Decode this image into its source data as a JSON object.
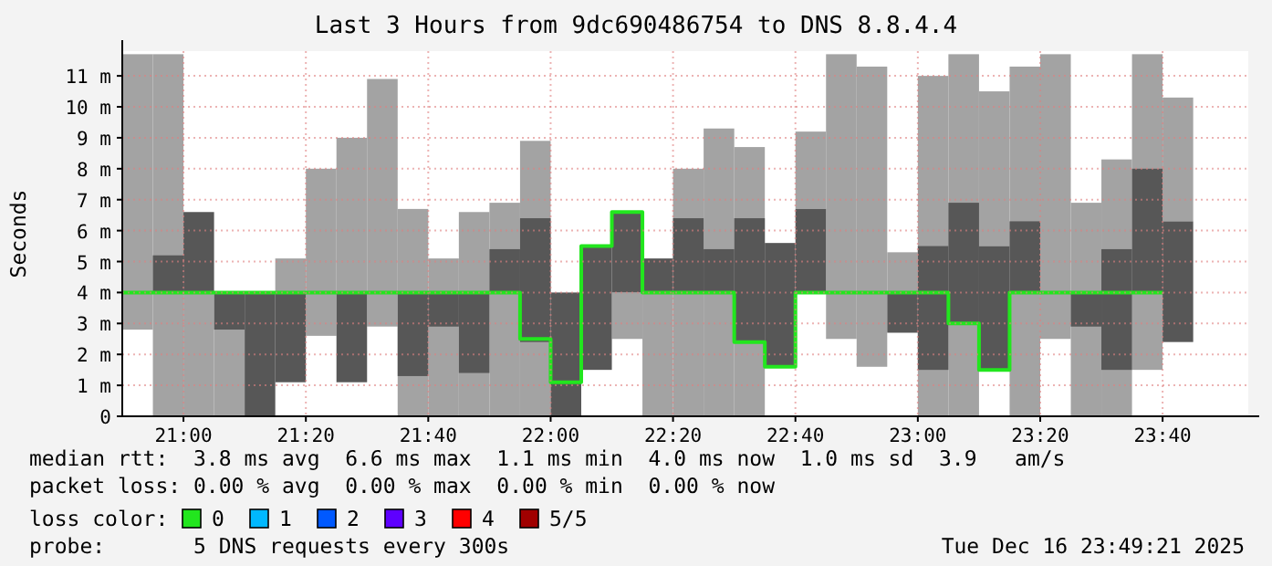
{
  "chart_data": {
    "type": "bar",
    "title": "Last 3 Hours from 9dc690486754 to DNS 8.8.4.4",
    "ylabel": "Seconds",
    "x": [
      "2025-12-16T20:50",
      "2025-12-16T20:55",
      "2025-12-16T21:00",
      "2025-12-16T21:05",
      "2025-12-16T21:10",
      "2025-12-16T21:15",
      "2025-12-16T21:20",
      "2025-12-16T21:25",
      "2025-12-16T21:30",
      "2025-12-16T21:35",
      "2025-12-16T21:40",
      "2025-12-16T21:45",
      "2025-12-16T21:50",
      "2025-12-16T21:55",
      "2025-12-16T22:00",
      "2025-12-16T22:05",
      "2025-12-16T22:10",
      "2025-12-16T22:15",
      "2025-12-16T22:20",
      "2025-12-16T22:25",
      "2025-12-16T22:30",
      "2025-12-16T22:35",
      "2025-12-16T22:40",
      "2025-12-16T22:45",
      "2025-12-16T22:50",
      "2025-12-16T22:55",
      "2025-12-16T23:00",
      "2025-12-16T23:05",
      "2025-12-16T23:10",
      "2025-12-16T23:15",
      "2025-12-16T23:20",
      "2025-12-16T23:25",
      "2025-12-16T23:30",
      "2025-12-16T23:35",
      "2025-12-16T23:40"
    ],
    "series": [
      {
        "color": "#a3a3a3",
        "base": [
          2.8,
          0,
          0,
          0,
          null,
          4.0,
          2.6,
          4.0,
          2.9,
          0,
          0,
          0,
          0,
          0,
          null,
          null,
          2.5,
          0,
          0,
          0,
          0,
          null,
          6.7,
          2.5,
          1.6,
          4.0,
          0,
          0,
          5.5,
          0,
          2.5,
          0,
          0,
          1.5,
          6.3
        ],
        "values": [
          8.9,
          11.7,
          4.0,
          2.8,
          null,
          1.1,
          5.4,
          5.0,
          8.0,
          6.7,
          5.1,
          6.6,
          6.9,
          8.9,
          null,
          null,
          1.5,
          4.0,
          8.0,
          9.3,
          8.7,
          null,
          2.5,
          9.2,
          9.7,
          1.3,
          11.0,
          11.7,
          5.0,
          11.3,
          9.2,
          6.9,
          8.3,
          10.2,
          4.0
        ]
      },
      {
        "color": "#575757",
        "base": [
          null,
          4.0,
          4.0,
          2.8,
          0,
          1.1,
          null,
          1.1,
          null,
          1.3,
          2.9,
          1.4,
          4.0,
          2.4,
          0,
          1.5,
          4.0,
          4.0,
          4.0,
          4.0,
          2.4,
          1.6,
          4.0,
          null,
          null,
          2.7,
          1.5,
          3.0,
          1.5,
          4.0,
          null,
          2.9,
          1.5,
          4.0,
          2.4
        ],
        "values": [
          null,
          1.2,
          2.6,
          1.2,
          4.0,
          2.9,
          null,
          2.9,
          null,
          2.7,
          1.1,
          2.6,
          1.4,
          4.0,
          4.0,
          4.0,
          2.6,
          1.1,
          2.4,
          1.4,
          4.0,
          4.0,
          2.7,
          null,
          null,
          1.3,
          4.0,
          3.9,
          4.0,
          2.3,
          null,
          1.1,
          3.9,
          4.0,
          3.9
        ]
      },
      {
        "type": "step",
        "name": "0",
        "color": "#22e61e",
        "values": [
          4.0,
          4.0,
          4.0,
          4.0,
          4.0,
          4.0,
          4.0,
          4.0,
          4.0,
          4.0,
          4.0,
          4.0,
          4.0,
          2.5,
          1.1,
          5.5,
          6.6,
          4.0,
          4.0,
          4.0,
          2.4,
          1.6,
          4.0,
          4.0,
          4.0,
          4.0,
          4.0,
          3.0,
          1.5,
          4.0,
          4.0,
          4.0,
          4.0,
          4.0,
          4.0
        ]
      },
      {
        "type": "step",
        "name": "1",
        "color": "#00b8ff",
        "values": [
          null,
          null,
          null,
          null,
          null,
          null,
          null,
          null,
          null,
          null,
          null,
          null,
          null,
          null,
          null,
          null,
          null,
          null,
          null,
          null,
          null,
          null,
          null,
          null,
          null,
          null,
          null,
          null,
          null,
          null,
          null,
          null,
          null,
          null,
          null
        ]
      },
      {
        "type": "step",
        "name": "2",
        "color": "#0059ff",
        "values": [
          null,
          null,
          null,
          null,
          null,
          null,
          null,
          null,
          null,
          null,
          null,
          null,
          null,
          null,
          null,
          null,
          null,
          null,
          null,
          null,
          null,
          null,
          null,
          null,
          null,
          null,
          null,
          null,
          null,
          null,
          null,
          null,
          null,
          null,
          null
        ]
      },
      {
        "type": "step",
        "name": "3",
        "color": "#5e00ff",
        "values": [
          null,
          null,
          null,
          null,
          null,
          null,
          null,
          null,
          null,
          null,
          null,
          null,
          null,
          null,
          null,
          null,
          null,
          null,
          null,
          null,
          null,
          null,
          null,
          null,
          null,
          null,
          null,
          null,
          null,
          null,
          null,
          null,
          null,
          null,
          null
        ]
      },
      {
        "type": "step",
        "name": "4",
        "color": "#ff0000",
        "values": [
          null,
          null,
          null,
          null,
          null,
          null,
          null,
          null,
          null,
          null,
          null,
          null,
          null,
          null,
          null,
          null,
          null,
          null,
          null,
          null,
          null,
          null,
          null,
          null,
          null,
          null,
          null,
          null,
          null,
          null,
          null,
          null,
          null,
          null,
          null
        ]
      },
      {
        "type": "step",
        "name": "5/5",
        "color": "#a00000",
        "values": [
          null,
          null,
          null,
          null,
          null,
          null,
          null,
          null,
          null,
          null,
          null,
          null,
          null,
          null,
          null,
          null,
          null,
          null,
          null,
          null,
          null,
          null,
          null,
          null,
          null,
          null,
          null,
          null,
          null,
          null,
          null,
          null,
          null,
          null,
          null
        ]
      }
    ],
    "xlim": [
      "2025-12-16T20:50",
      "2025-12-16T23:54"
    ],
    "xticks": [
      {
        "value": "2025-12-16T21:00",
        "label": "21:00"
      },
      {
        "value": "2025-12-16T21:20",
        "label": "21:20"
      },
      {
        "value": "2025-12-16T21:40",
        "label": "21:40"
      },
      {
        "value": "2025-12-16T22:00",
        "label": "22:00"
      },
      {
        "value": "2025-12-16T22:20",
        "label": "22:20"
      },
      {
        "value": "2025-12-16T22:40",
        "label": "22:40"
      },
      {
        "value": "2025-12-16T23:00",
        "label": "23:00"
      },
      {
        "value": "2025-12-16T23:20",
        "label": "23:20"
      },
      {
        "value": "2025-12-16T23:40",
        "label": "23:40"
      }
    ],
    "ylim": [
      0,
      11.8
    ],
    "yticks": [
      0,
      {
        "value": 1,
        "label": "1 m"
      },
      {
        "value": 2,
        "label": "2 m"
      },
      {
        "value": 3,
        "label": "3 m"
      },
      {
        "value": 4,
        "label": "4 m"
      },
      {
        "value": 5,
        "label": "5 m"
      },
      {
        "value": 6,
        "label": "6 m"
      },
      {
        "value": 7,
        "label": "7 m"
      },
      {
        "value": 8,
        "label": "8 m"
      },
      {
        "value": 9,
        "label": "9 m"
      },
      {
        "value": 10,
        "label": "10 m"
      },
      {
        "value": 11,
        "label": "11 m"
      }
    ],
    "grid": true,
    "legend": "bottom",
    "legend_title": "loss color:",
    "annotations": [
      "median rtt:  3.8 ms avg  6.6 ms max  1.1 ms min  4.0 ms now  1.0 ms sd  3.9   am/s",
      "packet loss: 0.00 % avg  0.00 % max  0.00 % min  0.00 % now",
      "probe:       5 DNS requests every 300s",
      "Tue Dec 16 23:49:21 2025"
    ]
  }
}
